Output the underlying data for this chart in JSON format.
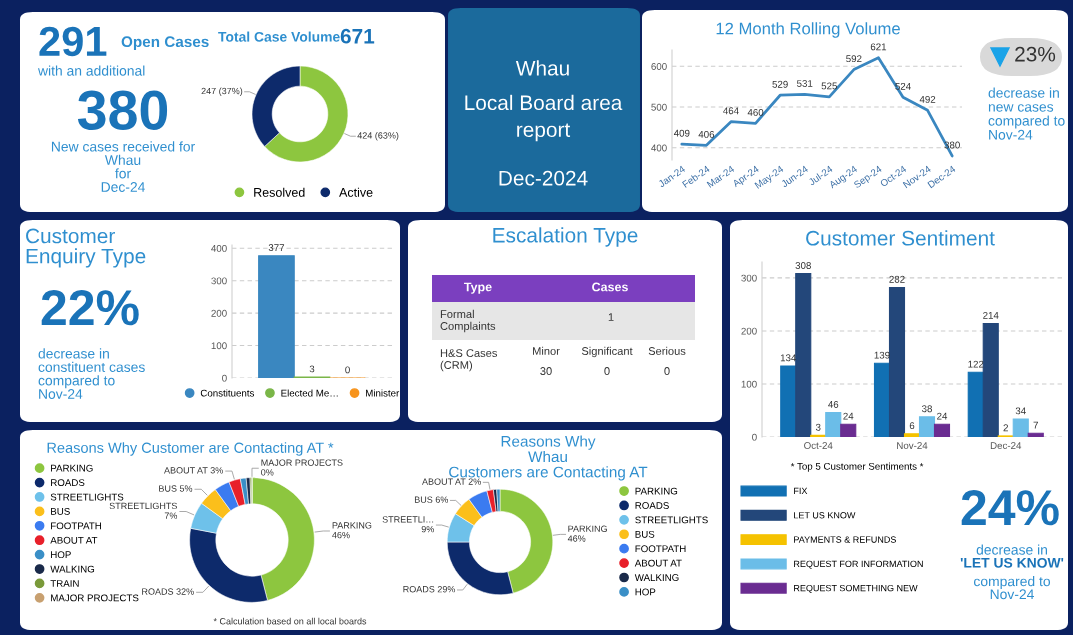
{
  "chart_data": [
    {
      "type": "other",
      "annotations": [
        "291",
        "Open Cases",
        "with an additional",
        "380",
        "New cases received for\nWhau\nfor\nDec-24"
      ]
    },
    {
      "type": "donut",
      "title": "Total Case Volume",
      "annotations": [
        "671"
      ],
      "categories": [
        "Resolved",
        "Active"
      ],
      "values": [
        424,
        247
      ],
      "colors": [
        "#8dc63f",
        "#0d2a6b"
      ],
      "value_labels": [
        "424 (63%)",
        "247 (37%)"
      ],
      "legend": "bottom"
    },
    {
      "type": "other",
      "annotations": [
        "Whau",
        "Local Board area\nreport",
        "Dec-2024"
      ]
    },
    {
      "type": "line",
      "title": "12 Month Rolling Volume",
      "categories": [
        "Jan-24",
        "Feb-24",
        "Mar-24",
        "Apr-24",
        "May-24",
        "Jun-24",
        "Jul-24",
        "Aug-24",
        "Sep-24",
        "Oct-24",
        "Nov-24",
        "Dec-24"
      ],
      "values": [
        409,
        406,
        464,
        460,
        529,
        531,
        525,
        592,
        621,
        524,
        492,
        380
      ],
      "color": "#3a87c0",
      "data_labels": true,
      "ylim": [
        370,
        640
      ],
      "yticks": [
        400,
        500,
        600
      ],
      "grid": "y",
      "annotations": [
        "23%",
        "decrease in\nnew cases\ncompared to\nNov-24"
      ]
    },
    {
      "type": "bar",
      "title": "Customer\nEnquiry Type",
      "annotations": [
        "22%",
        "decrease in\nconstituent cases\ncompared to\nNov-24"
      ],
      "categories": [
        null
      ],
      "series": [
        {
          "name": "Constituents",
          "color": "#3a87c0",
          "values": [
            377
          ]
        },
        {
          "name": "Elected Me…",
          "color": "#7ab648",
          "values": [
            3
          ]
        },
        {
          "name": "Minister",
          "color": "#f7941d",
          "values": [
            0
          ]
        }
      ],
      "data_labels": true,
      "ylim": [
        0,
        410
      ],
      "yticks": [
        0,
        100,
        200,
        300,
        400
      ],
      "grid": "y",
      "legend": "bottom"
    },
    {
      "type": "other",
      "title": "Escalation Type",
      "annotations": [
        "Type",
        "Cases",
        "Formal\nComplaints",
        "1",
        "H&S Cases\n(CRM)",
        "Minor",
        "Significant",
        "Serious",
        "30",
        "0",
        "0"
      ]
    },
    {
      "type": "bar",
      "title": "Customer Sentiment",
      "categories": [
        "Oct-24",
        "Nov-24",
        "Dec-24"
      ],
      "series": [
        {
          "name": "FIX",
          "color": "#1170b3",
          "values": [
            134,
            139,
            122
          ]
        },
        {
          "name": "LET US KNOW",
          "color": "#23477a",
          "values": [
            308,
            282,
            214
          ]
        },
        {
          "name": "PAYMENTS & REFUNDS",
          "color": "#f5c200",
          "values": [
            3,
            6,
            2
          ]
        },
        {
          "name": "REQUEST FOR INFORMATION",
          "color": "#6bbde8",
          "values": [
            46,
            38,
            34
          ]
        },
        {
          "name": "REQUEST SOMETHING NEW",
          "color": "#6a2c91",
          "values": [
            24,
            24,
            7
          ]
        }
      ],
      "data_labels": true,
      "ylim": [
        0,
        330
      ],
      "yticks": [
        0,
        100,
        200,
        300
      ],
      "grid": "y",
      "legend": "bottom",
      "legend_title": "* Top 5 Customer Sentiments *",
      "annotations": [
        "24%",
        "decrease in",
        "'LET US KNOW'",
        "compared to\nNov-24"
      ]
    },
    {
      "type": "donut",
      "title": "Reasons Why Customer are Contacting AT *",
      "categories": [
        "PARKING",
        "ROADS",
        "STREETLIGHTS",
        "BUS",
        "FOOTPATH",
        "ABOUT AT",
        "HOP",
        "WALKING",
        "TRAIN",
        "MAJOR PROJECTS"
      ],
      "values": [
        46,
        32,
        7,
        5,
        4,
        3,
        1.5,
        1,
        0.5,
        0
      ],
      "colors": [
        "#8dc63f",
        "#0d2a6b",
        "#6ec1ea",
        "#fbbf1b",
        "#3b7bf0",
        "#e8202a",
        "#3a8fc7",
        "#1a2a4a",
        "#7a9a3a",
        "#c8a070"
      ],
      "value_labels": [
        "PARKING\n46%",
        "ROADS 32%",
        "STREETLIGHTS\n7%",
        "BUS 5%",
        null,
        "ABOUT AT 3%",
        null,
        null,
        null,
        "MAJOR PROJECTS\n0%"
      ],
      "legend": "left",
      "annotations": [
        "* Calculation based on all local boards"
      ]
    },
    {
      "type": "donut",
      "title": "Reasons Why\nWhau\nCustomers are Contacting AT",
      "categories": [
        "PARKING",
        "ROADS",
        "STREETLIGHTS",
        "BUS",
        "FOOTPATH",
        "ABOUT AT",
        "WALKING",
        "HOP"
      ],
      "values": [
        46,
        29,
        9,
        6,
        6,
        2,
        1,
        1
      ],
      "colors": [
        "#8dc63f",
        "#0d2a6b",
        "#6ec1ea",
        "#fbbf1b",
        "#3b7bf0",
        "#e8202a",
        "#1a2a4a",
        "#3a8fc7"
      ],
      "value_labels": [
        "PARKING\n46%",
        "ROADS 29%",
        "STREETLI…\n9%",
        "BUS 6%",
        null,
        "ABOUT AT 2%",
        null,
        null
      ],
      "legend": "right"
    }
  ]
}
